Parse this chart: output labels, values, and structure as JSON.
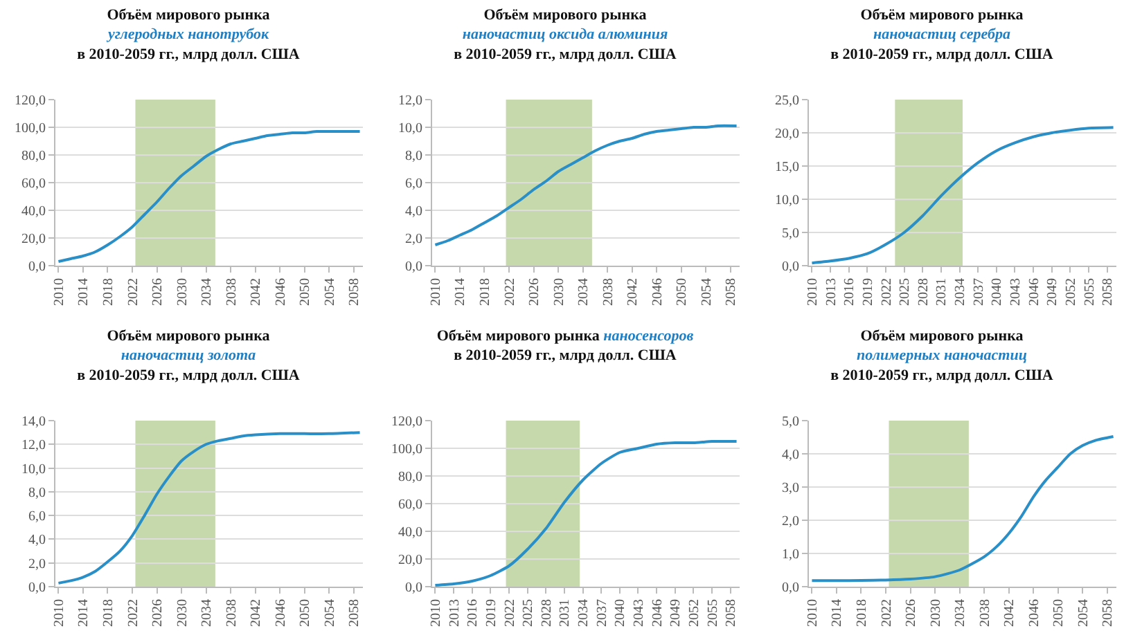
{
  "chart_data": [
    {
      "type": "line",
      "title": "Объём мирового рынка",
      "subtitle": "углеродных нанотрубок",
      "annotations": [
        "в 2010-2059 гг., млрд долл. США"
      ],
      "x": [
        2010,
        2012,
        2014,
        2016,
        2018,
        2020,
        2022,
        2024,
        2026,
        2028,
        2030,
        2032,
        2034,
        2036,
        2038,
        2040,
        2042,
        2044,
        2046,
        2048,
        2050,
        2052,
        2054,
        2056,
        2059
      ],
      "series": [
        {
          "color": "#2b8fc7",
          "values": [
            3,
            5,
            7,
            10,
            15,
            21,
            28,
            37,
            46,
            56,
            65,
            72,
            79,
            84,
            88,
            90,
            92,
            94,
            95,
            96,
            96,
            97,
            97,
            97,
            97
          ]
        }
      ],
      "xlim": [
        2009.5,
        2059.5
      ],
      "xticks": [
        2010,
        2014,
        2018,
        2022,
        2026,
        2030,
        2034,
        2038,
        2042,
        2046,
        2050,
        2054,
        2058
      ],
      "ylim": [
        0,
        120
      ],
      "yticks": [
        {
          "value": 0,
          "label": "0,0"
        },
        {
          "value": 20,
          "label": "20,0"
        },
        {
          "value": 40,
          "label": "40,0"
        },
        {
          "value": 60,
          "label": "60,0"
        },
        {
          "value": 80,
          "label": "80,0"
        },
        {
          "value": 100,
          "label": "100,0"
        },
        {
          "value": 120,
          "label": "120,0"
        }
      ],
      "bands": [
        {
          "axis": "x",
          "from": 2022.5,
          "to": 2035.5,
          "color": "#c6d9ad"
        }
      ],
      "grid": "y"
    },
    {
      "type": "line",
      "title": "Объём мирового рынка",
      "subtitle": "наночастиц оксида алюминия",
      "annotations": [
        "в 2010-2059 гг., млрд долл. США"
      ],
      "x": [
        2010,
        2012,
        2014,
        2016,
        2018,
        2020,
        2022,
        2024,
        2026,
        2028,
        2030,
        2032,
        2034,
        2036,
        2038,
        2040,
        2042,
        2044,
        2046,
        2048,
        2050,
        2052,
        2054,
        2056,
        2059
      ],
      "series": [
        {
          "color": "#2b8fc7",
          "values": [
            1.5,
            1.8,
            2.2,
            2.6,
            3.1,
            3.6,
            4.2,
            4.8,
            5.5,
            6.1,
            6.8,
            7.3,
            7.8,
            8.3,
            8.7,
            9.0,
            9.2,
            9.5,
            9.7,
            9.8,
            9.9,
            10.0,
            10.0,
            10.1,
            10.1
          ]
        }
      ],
      "xlim": [
        2009.5,
        2059.5
      ],
      "xticks": [
        2010,
        2014,
        2018,
        2022,
        2026,
        2030,
        2034,
        2038,
        2042,
        2046,
        2050,
        2054,
        2058
      ],
      "ylim": [
        0,
        12
      ],
      "yticks": [
        {
          "value": 0,
          "label": "0,0"
        },
        {
          "value": 2,
          "label": "2,0"
        },
        {
          "value": 4,
          "label": "4,0"
        },
        {
          "value": 6,
          "label": "6,0"
        },
        {
          "value": 8,
          "label": "8,0"
        },
        {
          "value": 10,
          "label": "10,0"
        },
        {
          "value": 12,
          "label": "12,0"
        }
      ],
      "bands": [
        {
          "axis": "x",
          "from": 2021.5,
          "to": 2035.5,
          "color": "#c6d9ad"
        }
      ],
      "grid": "y"
    },
    {
      "type": "line",
      "title": "Объём мирового рынка",
      "subtitle": "наночастиц серебра",
      "annotations": [
        "в 2010-2059 гг., млрд долл. США"
      ],
      "x": [
        2010,
        2013,
        2016,
        2019,
        2022,
        2025,
        2028,
        2031,
        2034,
        2037,
        2040,
        2043,
        2046,
        2049,
        2052,
        2055,
        2059
      ],
      "series": [
        {
          "color": "#2b8fc7",
          "values": [
            0.4,
            0.7,
            1.1,
            1.8,
            3.2,
            5.0,
            7.5,
            10.5,
            13.2,
            15.5,
            17.3,
            18.5,
            19.4,
            20.0,
            20.4,
            20.7,
            20.8
          ]
        }
      ],
      "xlim": [
        2009.5,
        2059.5
      ],
      "xticks": [
        2010,
        2013,
        2016,
        2019,
        2022,
        2025,
        2028,
        2031,
        2034,
        2037,
        2040,
        2043,
        2046,
        2049,
        2052,
        2055,
        2058
      ],
      "ylim": [
        0,
        25
      ],
      "yticks": [
        {
          "value": 0,
          "label": "0,0"
        },
        {
          "value": 5,
          "label": "5,0"
        },
        {
          "value": 10,
          "label": "10,0"
        },
        {
          "value": 15,
          "label": "15,0"
        },
        {
          "value": 20,
          "label": "20,0"
        },
        {
          "value": 25,
          "label": "25,0"
        }
      ],
      "bands": [
        {
          "axis": "x",
          "from": 2023.5,
          "to": 2034.5,
          "color": "#c6d9ad"
        }
      ],
      "grid": "y"
    },
    {
      "type": "line",
      "title": "Объём мирового рынка",
      "subtitle": "наночастиц золота",
      "annotations": [
        "в 2010-2059 гг., млрд долл. США"
      ],
      "x": [
        2010,
        2012,
        2014,
        2016,
        2018,
        2020,
        2022,
        2024,
        2026,
        2028,
        2030,
        2032,
        2034,
        2036,
        2038,
        2040,
        2042,
        2046,
        2050,
        2054,
        2059
      ],
      "series": [
        {
          "color": "#2b8fc7",
          "values": [
            0.3,
            0.5,
            0.8,
            1.3,
            2.1,
            3.0,
            4.3,
            6.0,
            7.8,
            9.3,
            10.6,
            11.4,
            12.0,
            12.3,
            12.5,
            12.7,
            12.8,
            12.9,
            12.9,
            12.9,
            13.0
          ]
        }
      ],
      "xlim": [
        2009.5,
        2059.5
      ],
      "xticks": [
        2010,
        2014,
        2018,
        2022,
        2026,
        2030,
        2034,
        2038,
        2042,
        2046,
        2050,
        2054,
        2058
      ],
      "ylim": [
        0,
        14
      ],
      "yticks": [
        {
          "value": 0,
          "label": "0,0"
        },
        {
          "value": 2,
          "label": "2,0"
        },
        {
          "value": 4,
          "label": "4,0"
        },
        {
          "value": 6,
          "label": "6,0"
        },
        {
          "value": 8,
          "label": "8,0"
        },
        {
          "value": 10,
          "label": "10,0"
        },
        {
          "value": 12,
          "label": "12,0"
        },
        {
          "value": 14,
          "label": "14,0"
        }
      ],
      "bands": [
        {
          "axis": "x",
          "from": 2022.5,
          "to": 2035.5,
          "color": "#c6d9ad"
        }
      ],
      "grid": "y"
    },
    {
      "type": "line",
      "title": "Объём мирового рынка",
      "subtitle": "наносенсоров",
      "annotations": [
        "в 2010-2059 гг., млрд долл. США"
      ],
      "x": [
        2010,
        2013,
        2016,
        2019,
        2022,
        2025,
        2028,
        2031,
        2034,
        2037,
        2040,
        2043,
        2046,
        2049,
        2052,
        2055,
        2059
      ],
      "series": [
        {
          "color": "#2b8fc7",
          "values": [
            1,
            2,
            4,
            8,
            15,
            27,
            42,
            61,
            77,
            89,
            97,
            100,
            103,
            104,
            104,
            105,
            105
          ]
        }
      ],
      "xlim": [
        2009.5,
        2059.5
      ],
      "xticks": [
        2010,
        2013,
        2016,
        2019,
        2022,
        2025,
        2028,
        2031,
        2034,
        2037,
        2040,
        2043,
        2046,
        2049,
        2052,
        2055,
        2058
      ],
      "ylim": [
        0,
        120
      ],
      "yticks": [
        {
          "value": 0,
          "label": "0,0"
        },
        {
          "value": 20,
          "label": "20,0"
        },
        {
          "value": 40,
          "label": "40,0"
        },
        {
          "value": 60,
          "label": "60,0"
        },
        {
          "value": 80,
          "label": "80,0"
        },
        {
          "value": 100,
          "label": "100,0"
        },
        {
          "value": 120,
          "label": "120,0"
        }
      ],
      "bands": [
        {
          "axis": "x",
          "from": 2021.5,
          "to": 2033.5,
          "color": "#c6d9ad"
        }
      ],
      "grid": "y"
    },
    {
      "type": "line",
      "title": "Объём мирового рынка",
      "subtitle": "полимерных наночастиц",
      "annotations": [
        "в 2010-2059 гг., млрд долл. США"
      ],
      "x": [
        2010,
        2014,
        2018,
        2022,
        2026,
        2030,
        2034,
        2038,
        2040,
        2042,
        2044,
        2046,
        2048,
        2050,
        2052,
        2054,
        2056,
        2059
      ],
      "series": [
        {
          "color": "#2b8fc7",
          "values": [
            0.18,
            0.18,
            0.19,
            0.2,
            0.23,
            0.3,
            0.5,
            0.9,
            1.2,
            1.6,
            2.1,
            2.7,
            3.2,
            3.6,
            4.0,
            4.25,
            4.4,
            4.52
          ]
        }
      ],
      "xlim": [
        2009.5,
        2059.5
      ],
      "xticks": [
        2010,
        2014,
        2018,
        2022,
        2026,
        2030,
        2034,
        2038,
        2042,
        2046,
        2050,
        2054,
        2058
      ],
      "ylim": [
        0,
        5
      ],
      "yticks": [
        {
          "value": 0,
          "label": "0,0"
        },
        {
          "value": 1,
          "label": "1,0"
        },
        {
          "value": 2,
          "label": "2,0"
        },
        {
          "value": 3,
          "label": "3,0"
        },
        {
          "value": 4,
          "label": "4,0"
        },
        {
          "value": 5,
          "label": "5,0"
        }
      ],
      "bands": [
        {
          "axis": "x",
          "from": 2022.5,
          "to": 2035.5,
          "color": "#c6d9ad"
        }
      ],
      "grid": "y"
    }
  ]
}
